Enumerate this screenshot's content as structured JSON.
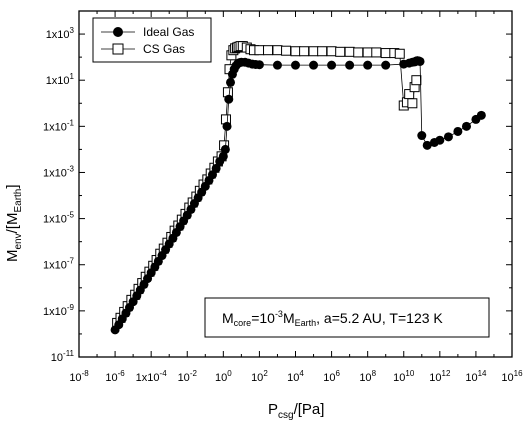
{
  "chart_data": {
    "type": "scatter",
    "x_scale": "log",
    "y_scale": "log",
    "xlim": [
      1e-08,
      1e+16
    ],
    "ylim": [
      1e-11,
      10000.0
    ],
    "grid": false,
    "legend_position": "top-left",
    "x_ticks": [
      {
        "value": 1e-08,
        "base": "10",
        "exp": "-8"
      },
      {
        "value": 1e-06,
        "base": "10",
        "exp": "-6"
      },
      {
        "value": 0.0001,
        "base": "1x10",
        "exp": "-4"
      },
      {
        "value": 0.01,
        "base": "10",
        "exp": "-2"
      },
      {
        "value": 1,
        "base": "10",
        "exp": "0"
      },
      {
        "value": 100.0,
        "base": "10",
        "exp": "2"
      },
      {
        "value": 10000.0,
        "base": "10",
        "exp": "4"
      },
      {
        "value": 1000000.0,
        "base": "10",
        "exp": "6"
      },
      {
        "value": 100000000.0,
        "base": "10",
        "exp": "8"
      },
      {
        "value": 10000000000.0,
        "base": "10",
        "exp": "10"
      },
      {
        "value": 1000000000000.0,
        "base": "10",
        "exp": "12"
      },
      {
        "value": 100000000000000.0,
        "base": "10",
        "exp": "14"
      },
      {
        "value": 1e+16,
        "base": "10",
        "exp": "16"
      }
    ],
    "y_ticks": [
      {
        "value": 1e-11,
        "base": "10",
        "exp": "-11"
      },
      {
        "value": 1e-09,
        "base": "1x10",
        "exp": "-9"
      },
      {
        "value": 1e-07,
        "base": "1x10",
        "exp": "-7"
      },
      {
        "value": 1e-05,
        "base": "1x10",
        "exp": "-5"
      },
      {
        "value": 0.001,
        "base": "1x10",
        "exp": "-3"
      },
      {
        "value": 0.1,
        "base": "1x10",
        "exp": "-1"
      },
      {
        "value": 10.0,
        "base": "1x10",
        "exp": "1"
      },
      {
        "value": 1000.0,
        "base": "1x10",
        "exp": "3"
      }
    ],
    "xlabel": {
      "main": "P",
      "sub": "csg",
      "rest": "/[Pa]"
    },
    "ylabel": {
      "main": "M",
      "sub": "env",
      "rest1": "/[M",
      "sub2": "Earth",
      "rest2": "]"
    },
    "annotation": {
      "p1": "M",
      "s1": "core",
      "p2": "=10",
      "e1": "-3",
      "p3": "M",
      "s2": "Earth",
      "p4": ", a=5.2 AU, T=123 K"
    },
    "series": [
      {
        "name": "Ideal Gas",
        "marker": "filled-circle",
        "color": "#000000",
        "x": [
          1e-06,
          1.6e-06,
          2.5e-06,
          4e-06,
          6.3e-06,
          1e-05,
          1.6e-05,
          2.5e-05,
          4e-05,
          6.3e-05,
          0.0001,
          0.00016,
          0.00025,
          0.0004,
          0.00063,
          0.001,
          0.0016,
          0.0025,
          0.004,
          0.0063,
          0.01,
          0.016,
          0.025,
          0.04,
          0.063,
          0.1,
          0.16,
          0.25,
          0.4,
          0.63,
          1.0,
          1.3,
          1.6,
          2.0,
          2.5,
          3.2,
          4,
          5,
          6.3,
          8,
          10,
          16,
          25,
          40,
          63,
          100,
          1000.0,
          10000.0,
          100000.0,
          1000000.0,
          10000000.0,
          100000000.0,
          1000000000.0,
          10000000000.0,
          20000000000.0,
          30000000000.0,
          40000000000.0,
          45000000000.0,
          50000000000.0,
          55000000000.0,
          60000000000.0,
          70000000000.0,
          80000000000.0,
          100000000000.0,
          200000000000.0,
          500000000000.0,
          1000000000000.0,
          3000000000000.0,
          10000000000000.0,
          30000000000000.0,
          100000000000000.0,
          200000000000000.0
        ],
        "y": [
          1.5e-10,
          2.5e-10,
          4.5e-10,
          8e-10,
          1.4e-09,
          2.5e-09,
          4.5e-09,
          8e-09,
          1.4e-08,
          2.5e-08,
          4.5e-08,
          8e-08,
          1.4e-07,
          2.5e-07,
          4.5e-07,
          8e-07,
          1.4e-06,
          2.5e-06,
          4.5e-06,
          8e-06,
          1.4e-05,
          2.5e-05,
          4.5e-05,
          8e-05,
          0.00014,
          0.00025,
          0.00045,
          0.0008,
          0.0015,
          0.003,
          0.005,
          0.01,
          0.1,
          1.5,
          8,
          18,
          30,
          42,
          52,
          58,
          60,
          60,
          55,
          50,
          48,
          47,
          45,
          45,
          45,
          45,
          45,
          45,
          45,
          50,
          55,
          60,
          62,
          65,
          68,
          70,
          70,
          68,
          65,
          0.04,
          0.015,
          0.02,
          0.025,
          0.035,
          0.06,
          0.1,
          0.2,
          0.3
        ]
      },
      {
        "name": "CS Gas",
        "marker": "open-square",
        "color": "#000000",
        "x": [
          1.3e-06,
          2e-06,
          3.2e-06,
          5e-06,
          8e-06,
          1.3e-05,
          2e-05,
          3.2e-05,
          5e-05,
          8e-05,
          0.00013,
          0.0002,
          0.00032,
          0.0005,
          0.0008,
          0.0013,
          0.002,
          0.0032,
          0.005,
          0.008,
          0.013,
          0.02,
          0.032,
          0.05,
          0.08,
          0.13,
          0.2,
          0.32,
          0.5,
          0.8,
          1.1,
          1.4,
          1.8,
          2.2,
          2.8,
          3.6,
          4.5,
          5.7,
          7,
          9,
          12,
          20,
          32,
          50,
          100,
          300,
          1000.0,
          3000.0,
          10000.0,
          30000.0,
          100000.0,
          300000.0,
          1000000.0,
          3000000.0,
          10000000.0,
          30000000.0,
          100000000.0,
          300000000.0,
          1000000000.0,
          3000000000.0,
          6000000000.0,
          10000000000.0,
          15000000000.0,
          20000000000.0,
          30000000000.0,
          40000000000.0,
          50000000000.0
        ],
        "y": [
          3e-10,
          5e-10,
          9e-10,
          1.6e-09,
          3e-09,
          5e-09,
          9e-09,
          1.6e-08,
          3e-08,
          5e-08,
          9e-08,
          1.6e-07,
          3e-07,
          5e-07,
          9e-07,
          1.6e-06,
          3e-06,
          5e-06,
          9e-06,
          1.6e-05,
          3e-05,
          5e-05,
          9e-05,
          0.00016,
          0.0003,
          0.0005,
          0.0009,
          0.0016,
          0.003,
          0.005,
          0.015,
          0.2,
          3,
          30,
          120,
          200,
          240,
          260,
          280,
          300,
          300,
          260,
          220,
          200,
          200,
          200,
          200,
          190,
          180,
          180,
          180,
          180,
          180,
          170,
          170,
          160,
          160,
          160,
          150,
          150,
          140,
          0.8,
          1.1,
          2.5,
          1.0,
          5,
          10
        ]
      }
    ]
  }
}
